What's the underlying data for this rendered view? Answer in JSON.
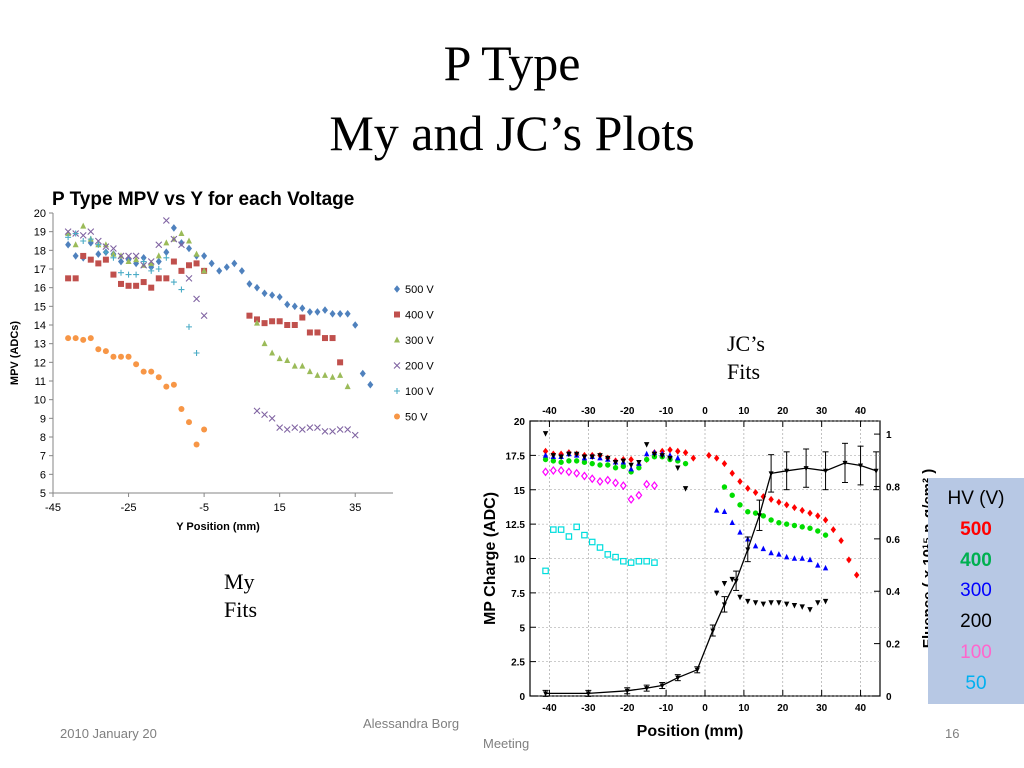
{
  "slide": {
    "title_line1": "P Type",
    "title_line2": "My and JC’s Plots",
    "my_fits_line1": "My",
    "my_fits_line2": "Fits",
    "jc_fits_line1": "JC’s",
    "jc_fits_line2": "Fits",
    "footer_date": "2010 January 20",
    "footer_author": "Alessandra Borg",
    "footer_meeting": "Meeting",
    "page_number": "16"
  },
  "hv_legend": {
    "header": "HV (V)",
    "values": [
      "500",
      "400",
      "300",
      "200",
      "100",
      "50"
    ],
    "colors": [
      "#ff0000",
      "#00b050",
      "#0000ff",
      "#000000",
      "#ff66cc",
      "#00b0f0"
    ]
  },
  "chart_data": [
    {
      "type": "scatter",
      "title": "P Type MPV vs Y for each Voltage",
      "xlabel": "Y Position (mm)",
      "ylabel": "MPV (ADCs)",
      "xlim": [
        -45,
        45
      ],
      "ylim": [
        5,
        20
      ],
      "x_ticks": [
        -45,
        -25,
        -5,
        15,
        35
      ],
      "y_ticks": [
        5,
        6,
        7,
        8,
        9,
        10,
        11,
        12,
        13,
        14,
        15,
        16,
        17,
        18,
        19,
        20
      ],
      "legend_position": "right",
      "grid": false,
      "series": [
        {
          "name": "500 V",
          "marker": "diamond",
          "color": "#4f81bd",
          "x": [
            -41,
            -39,
            -37,
            -35,
            -33,
            -31,
            -29,
            -27,
            -25,
            -23,
            -21,
            -19,
            -17,
            -15,
            -13,
            -11,
            -9,
            -7,
            -5,
            -3,
            -1,
            1,
            3,
            5,
            7,
            9,
            11,
            13,
            15,
            17,
            19,
            21,
            23,
            25,
            27,
            29,
            31,
            33,
            35,
            37,
            39
          ],
          "y": [
            18.3,
            17.7,
            17.6,
            18.4,
            17.8,
            17.9,
            17.8,
            17.4,
            17.5,
            17.3,
            17.6,
            17.1,
            17.4,
            17.9,
            19.2,
            18.4,
            18.1,
            17.7,
            17.7,
            17.3,
            16.9,
            17.1,
            17.3,
            16.9,
            16.2,
            16,
            15.7,
            15.6,
            15.5,
            15.1,
            15,
            14.9,
            14.7,
            14.7,
            14.8,
            14.6,
            14.6,
            14.6,
            14,
            11.4,
            10.8
          ]
        },
        {
          "name": "400 V",
          "marker": "square",
          "color": "#c0504d",
          "x": [
            -41,
            -39,
            -37,
            -35,
            -33,
            -31,
            -29,
            -27,
            -25,
            -23,
            -21,
            -19,
            -17,
            -15,
            -13,
            -11,
            -9,
            -7,
            -5,
            -3,
            1,
            3,
            5,
            7,
            9,
            11,
            13,
            15,
            17,
            19,
            21,
            23,
            25,
            27,
            29,
            31,
            33
          ],
          "y": [
            16.5,
            16.5,
            17.7,
            17.5,
            17.3,
            17.5,
            16.7,
            16.2,
            16.1,
            16.1,
            16.3,
            16,
            16.5,
            16.5,
            17.4,
            16.9,
            17.2,
            17.3,
            16.9,
            null,
            null,
            null,
            null,
            14.5,
            14.3,
            14.1,
            14.2,
            14.2,
            14,
            14,
            14.4,
            13.6,
            13.6,
            13.3,
            13.3,
            12,
            null
          ]
        },
        {
          "name": "300 V",
          "marker": "triangle",
          "color": "#9bbb59",
          "x": [
            -41,
            -39,
            -37,
            -35,
            -33,
            -31,
            -29,
            -27,
            -25,
            -23,
            -21,
            -19,
            -17,
            -15,
            -13,
            -11,
            -9,
            -7,
            -5,
            9,
            11,
            13,
            15,
            17,
            19,
            21,
            23,
            25,
            27,
            29,
            31,
            33
          ],
          "y": [
            18.9,
            18.3,
            19.3,
            18.6,
            18.3,
            18.3,
            17.8,
            17.7,
            17.4,
            17.5,
            17.2,
            17.3,
            17.7,
            18.4,
            18.6,
            18.9,
            18.5,
            17.8,
            16.9,
            14.1,
            13,
            12.5,
            12.2,
            12.1,
            11.8,
            11.8,
            11.5,
            11.3,
            11.3,
            11.2,
            11.3,
            10.7
          ]
        },
        {
          "name": "200 V",
          "marker": "x",
          "color": "#8064a2",
          "x": [
            -41,
            -39,
            -37,
            -35,
            -33,
            -31,
            -29,
            -27,
            -25,
            -23,
            -21,
            -19,
            -17,
            -15,
            -13,
            -11,
            -9,
            -7,
            -5,
            9,
            11,
            13,
            15,
            17,
            19,
            21,
            23,
            25,
            27,
            29,
            31,
            33,
            35
          ],
          "y": [
            19,
            18.9,
            18.8,
            19,
            18.5,
            18.2,
            18.1,
            17.7,
            17.7,
            17.7,
            17.2,
            17.4,
            18.3,
            19.6,
            18.6,
            18.3,
            16.5,
            15.4,
            14.5,
            9.4,
            9.2,
            9,
            8.5,
            8.4,
            8.5,
            8.4,
            8.5,
            8.5,
            8.3,
            8.3,
            8.4,
            8.4,
            8.1
          ]
        },
        {
          "name": "100 V",
          "marker": "plus",
          "color": "#4bacc6",
          "x": [
            -41,
            -39,
            -37,
            -35,
            -33,
            -31,
            -29,
            -27,
            -25,
            -23,
            -21,
            -19,
            -17,
            -15,
            -13,
            -11,
            -9,
            -7
          ],
          "y": [
            18.7,
            18.9,
            18.5,
            18.6,
            18.3,
            17.9,
            17.6,
            16.8,
            16.7,
            16.7,
            17.4,
            16.9,
            17,
            17.6,
            16.3,
            15.9,
            13.9,
            12.5
          ]
        },
        {
          "name": "50 V",
          "marker": "circle",
          "color": "#f79646",
          "x": [
            -41,
            -39,
            -37,
            -35,
            -33,
            -31,
            -29,
            -27,
            -25,
            -23,
            -21,
            -19,
            -17,
            -15,
            -13,
            -11,
            -9,
            -7,
            -5
          ],
          "y": [
            13.3,
            13.3,
            13.2,
            13.3,
            12.7,
            12.6,
            12.3,
            12.3,
            12.3,
            11.9,
            11.5,
            11.5,
            11.2,
            10.7,
            10.8,
            9.5,
            8.8,
            7.6,
            8.4
          ]
        }
      ]
    },
    {
      "type": "scatter",
      "title": "",
      "xlabel": "Position (mm)",
      "ylabel": "MP Charge (ADC)",
      "y2label": "Fluence ( x 10¹⁵ nₑq/cm² )",
      "xlim": [
        -45,
        45
      ],
      "ylim": [
        0,
        20
      ],
      "y2lim": [
        0,
        1.05
      ],
      "x_ticks": [
        -40,
        -30,
        -20,
        -10,
        0,
        10,
        20,
        30,
        40
      ],
      "y_ticks": [
        0,
        2.5,
        5,
        7.5,
        10,
        12.5,
        15,
        17.5,
        20
      ],
      "y2_ticks": [
        0,
        0.2,
        0.4,
        0.6,
        0.8,
        1
      ],
      "grid": true,
      "series": [
        {
          "name": "500",
          "marker": "diamond",
          "color": "#ff0000",
          "x": [
            -41,
            -39,
            -37,
            -35,
            -33,
            -31,
            -29,
            -27,
            -25,
            -23,
            -21,
            -19,
            -17,
            -15,
            -13,
            -11,
            -9,
            -7,
            -5,
            -3,
            1,
            3,
            5,
            7,
            9,
            11,
            13,
            15,
            17,
            19,
            21,
            23,
            25,
            27,
            29,
            31,
            33,
            35,
            37,
            39
          ],
          "y": [
            17.8,
            17.6,
            17.6,
            17.7,
            17.6,
            17.5,
            17.5,
            17.5,
            17.3,
            17.1,
            17.2,
            17.2,
            16.8,
            17.2,
            17.7,
            17.8,
            17.9,
            17.8,
            17.7,
            17.3,
            17.5,
            17.3,
            16.9,
            16.2,
            15.6,
            15.1,
            14.8,
            14.5,
            14.3,
            14.1,
            13.9,
            13.7,
            13.5,
            13.3,
            13.1,
            12.8,
            12.1,
            11.3,
            9.9,
            8.8
          ]
        },
        {
          "name": "400",
          "marker": "circle",
          "color": "#00dd00",
          "x": [
            -41,
            -39,
            -37,
            -35,
            -33,
            -31,
            -29,
            -27,
            -25,
            -23,
            -21,
            -19,
            -17,
            -15,
            -13,
            -11,
            -9,
            -7,
            -5,
            5,
            7,
            9,
            11,
            13,
            15,
            17,
            19,
            21,
            23,
            25,
            27,
            29,
            31
          ],
          "y": [
            17.2,
            17.1,
            17,
            17.1,
            17.1,
            17,
            16.9,
            16.8,
            16.8,
            16.6,
            16.7,
            16.3,
            16.6,
            17.2,
            17.4,
            17.4,
            17.2,
            17.1,
            16.9,
            15.2,
            14.6,
            13.9,
            13.4,
            13.3,
            13.1,
            12.8,
            12.6,
            12.5,
            12.4,
            12.3,
            12.2,
            12,
            11.7
          ]
        },
        {
          "name": "300",
          "marker": "triangle",
          "color": "#0000ff",
          "x": [
            -41,
            -39,
            -37,
            -35,
            -33,
            -31,
            -29,
            -27,
            -25,
            -23,
            -21,
            -19,
            -17,
            -15,
            -13,
            -11,
            -9,
            -7,
            3,
            5,
            7,
            9,
            11,
            13,
            15,
            17,
            19,
            21,
            23,
            25,
            27,
            29,
            31
          ],
          "y": [
            17.5,
            17.4,
            17.4,
            17.6,
            17.5,
            17.3,
            17.4,
            17.3,
            17.2,
            17,
            17,
            16.5,
            16.9,
            17.6,
            17.7,
            17.6,
            17.5,
            17.3,
            13.5,
            13.4,
            12.6,
            11.9,
            11.4,
            10.9,
            10.7,
            10.4,
            10.3,
            10.1,
            10,
            10,
            9.9,
            9.5,
            9.3
          ]
        },
        {
          "name": "200",
          "marker": "triangle-down",
          "color": "#000000",
          "x": [
            -41,
            -39,
            -37,
            -35,
            -33,
            -31,
            -29,
            -27,
            -25,
            -23,
            -21,
            -19,
            -17,
            -15,
            -13,
            -11,
            -9,
            -7,
            -5,
            3,
            5,
            7,
            9,
            11,
            13,
            15,
            17,
            19,
            21,
            23,
            25,
            27,
            29,
            31
          ],
          "y": [
            19.1,
            17.5,
            17.4,
            17.6,
            17.6,
            17.4,
            17.4,
            17.5,
            17.3,
            17,
            17.1,
            16.8,
            17,
            18.3,
            17.6,
            17.5,
            17.3,
            16.6,
            15.1,
            7.5,
            8.2,
            8.5,
            7.2,
            6.9,
            6.8,
            6.7,
            6.8,
            6.8,
            6.7,
            6.6,
            6.5,
            6.3,
            6.8,
            6.9
          ]
        },
        {
          "name": "100",
          "marker": "open-diamond",
          "color": "#ff00ff",
          "x": [
            -41,
            -39,
            -37,
            -35,
            -33,
            -31,
            -29,
            -27,
            -25,
            -23,
            -21,
            -19,
            -17,
            -15,
            -13
          ],
          "y": [
            16.3,
            16.4,
            16.4,
            16.3,
            16.2,
            16,
            15.8,
            15.6,
            15.7,
            15.5,
            15.3,
            14.3,
            14.6,
            15.4,
            15.3
          ]
        },
        {
          "name": "50",
          "marker": "open-square",
          "color": "#00dddd",
          "x": [
            -41,
            -39,
            -37,
            -35,
            -33,
            -31,
            -29,
            -27,
            -25,
            -23,
            -21,
            -19,
            -17,
            -15,
            -13
          ],
          "y": [
            9.1,
            12.1,
            12.1,
            11.6,
            12.3,
            11.7,
            11.2,
            10.8,
            10.3,
            10.1,
            9.8,
            9.7,
            9.8,
            9.8,
            9.7
          ]
        },
        {
          "name": "Fluence",
          "marker": "line",
          "color": "#000000",
          "axis": "y2",
          "x": [
            -41,
            -30,
            -20,
            -15,
            -11,
            -7,
            -2,
            2,
            5,
            8,
            11,
            14,
            17,
            21,
            26,
            31,
            36,
            40,
            44
          ],
          "y": [
            0.01,
            0.01,
            0.02,
            0.03,
            0.04,
            0.07,
            0.1,
            0.25,
            0.35,
            0.44,
            0.56,
            0.69,
            0.85,
            0.86,
            0.87,
            0.86,
            0.89,
            0.88,
            0.86
          ]
        }
      ]
    }
  ]
}
